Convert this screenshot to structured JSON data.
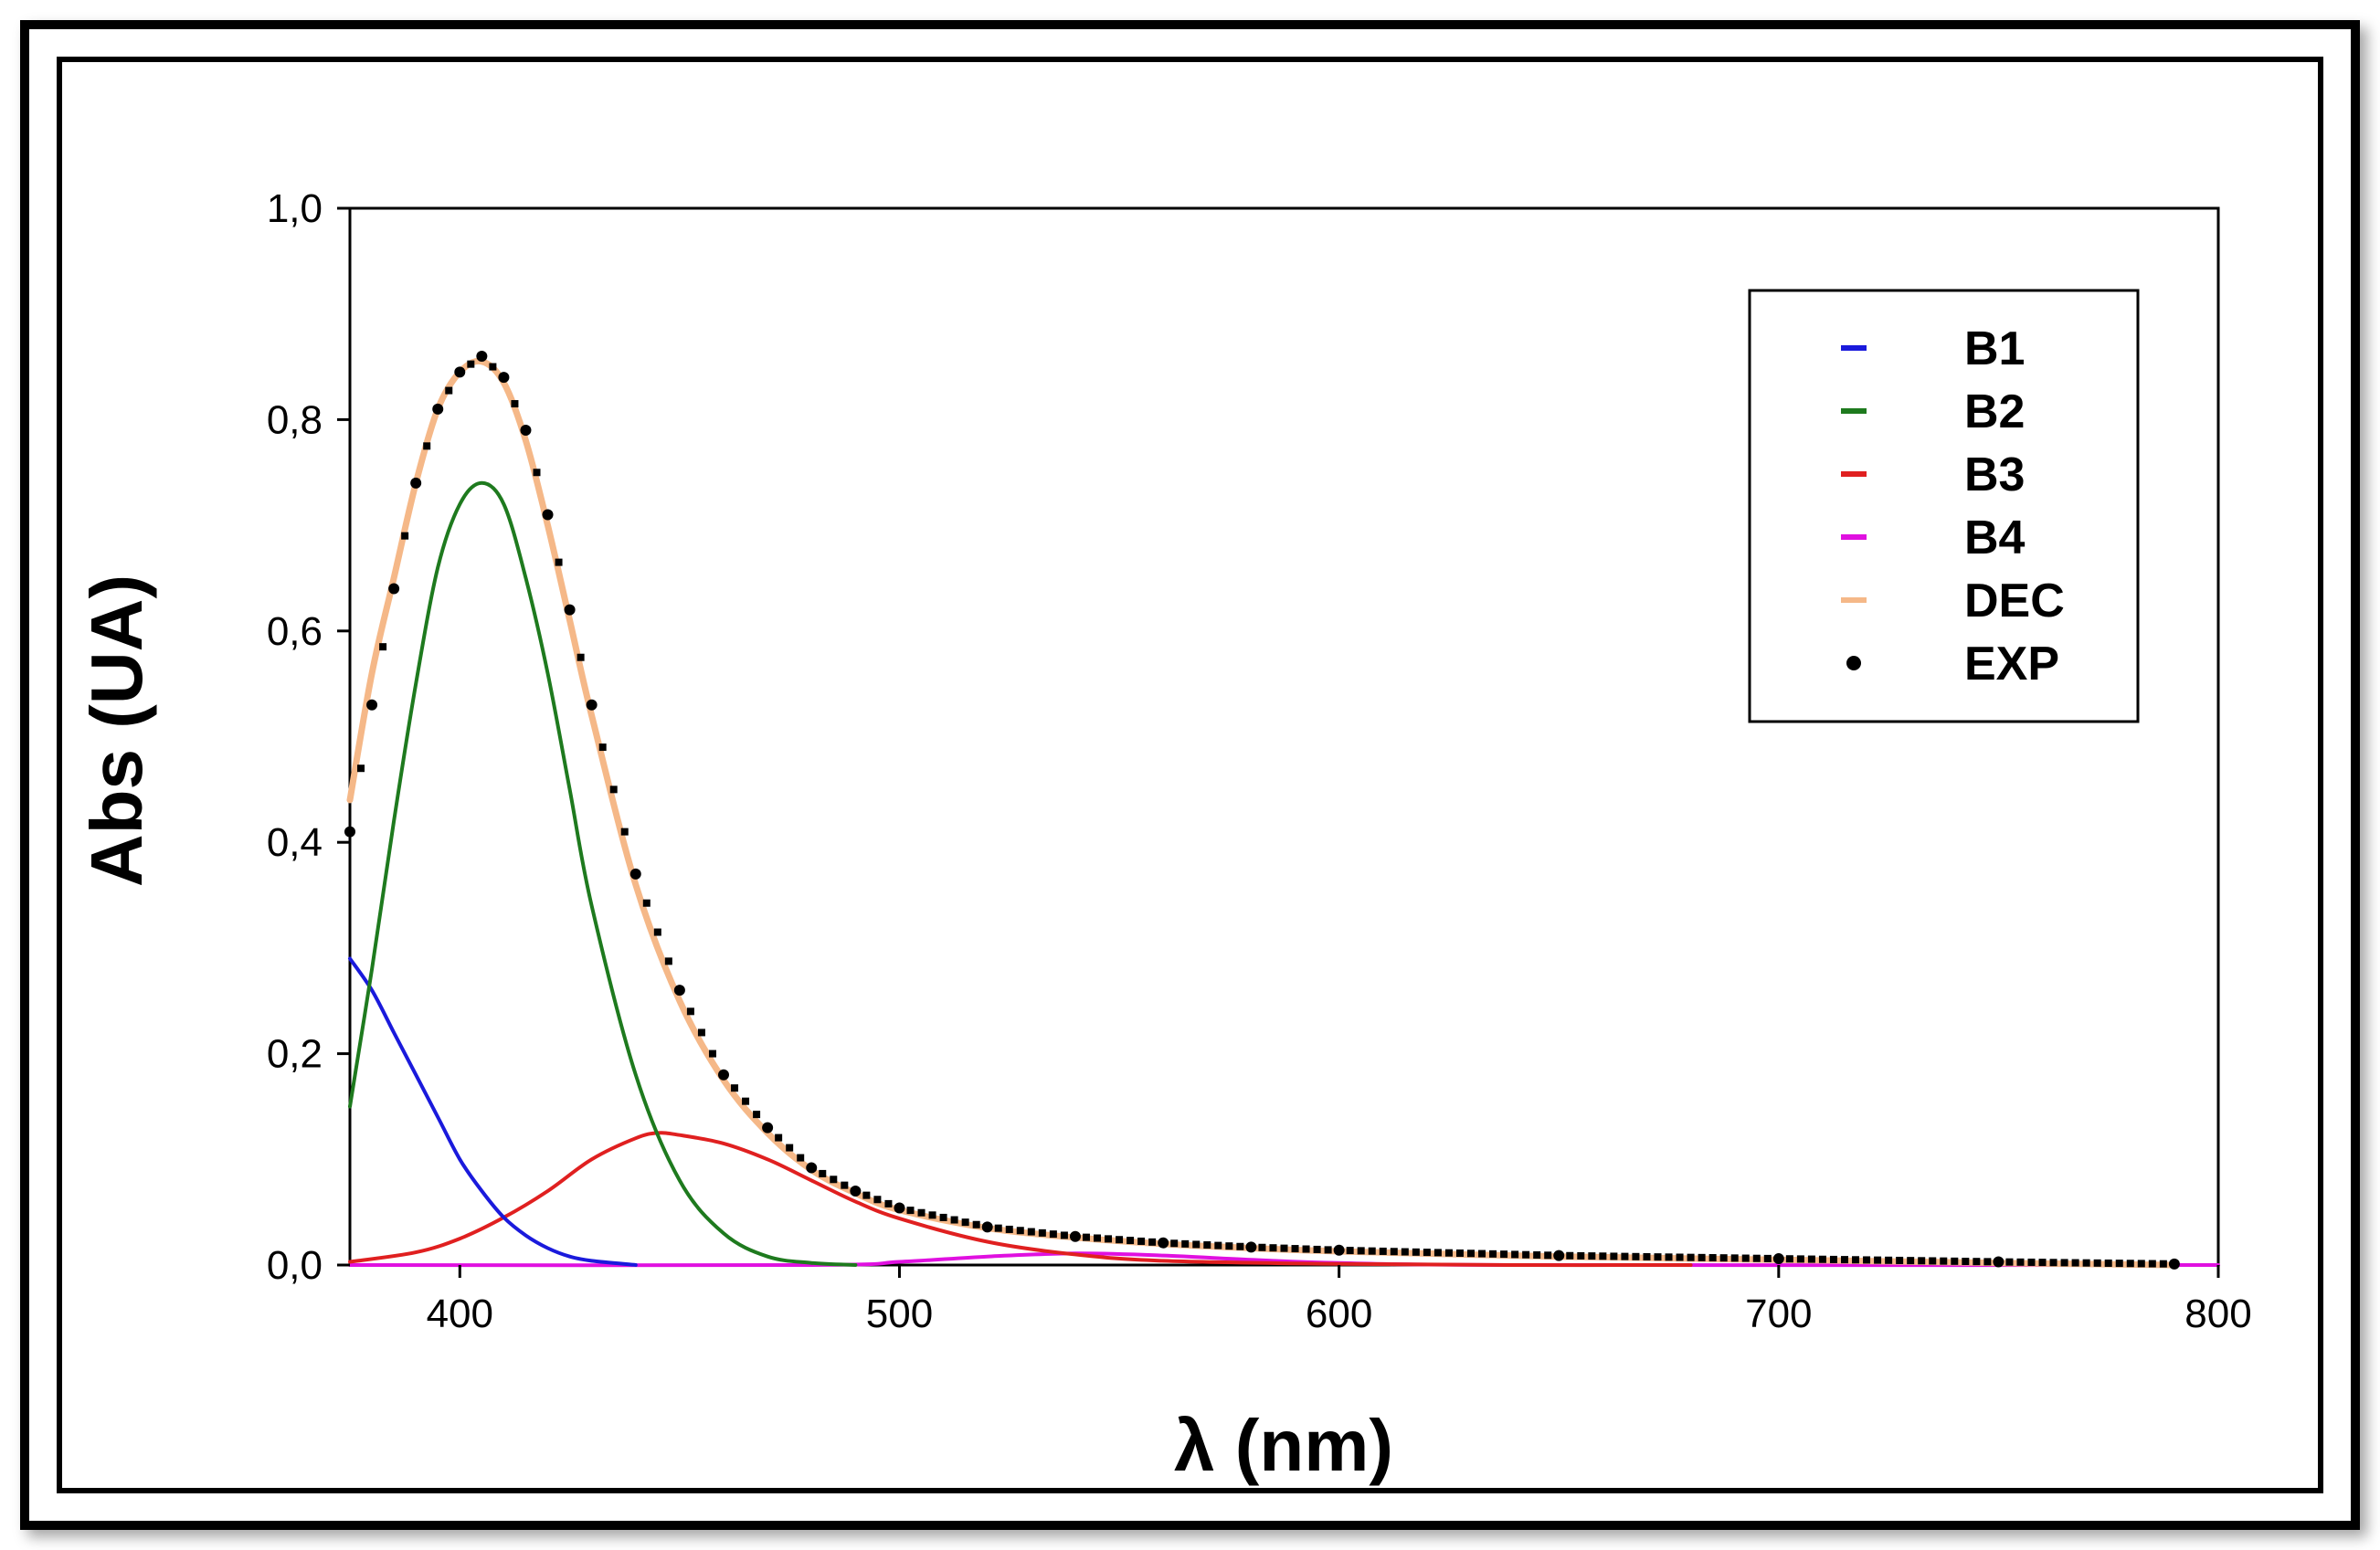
{
  "chart_data": {
    "type": "line",
    "title": "",
    "xlabel": "λ (nm)",
    "ylabel": "Abs (UA)",
    "xlim": [
      375,
      800
    ],
    "ylim": [
      0.0,
      1.0
    ],
    "x_ticks": [
      400,
      500,
      600,
      700,
      800
    ],
    "x_tick_labels": [
      "400",
      "500",
      "600",
      "700",
      "800"
    ],
    "y_ticks": [
      0.0,
      0.2,
      0.4,
      0.6,
      0.8,
      1.0
    ],
    "y_tick_labels": [
      "0,0",
      "0,2",
      "0,4",
      "0,6",
      "0,8",
      "1,0"
    ],
    "legend_position": "top-right",
    "series": [
      {
        "name": "B1",
        "color": "#1a1adc",
        "kind": "line",
        "x": [
          375,
          380,
          385,
          390,
          395,
          400,
          405,
          410,
          415,
          420,
          425,
          430,
          440
        ],
        "y": [
          0.29,
          0.26,
          0.22,
          0.18,
          0.14,
          0.1,
          0.07,
          0.045,
          0.028,
          0.016,
          0.008,
          0.004,
          0.0
        ]
      },
      {
        "name": "B2",
        "color": "#1e7a1e",
        "kind": "line",
        "x": [
          375,
          380,
          385,
          390,
          395,
          400,
          405,
          410,
          415,
          420,
          425,
          430,
          440,
          450,
          460,
          470,
          480,
          490
        ],
        "y": [
          0.15,
          0.28,
          0.42,
          0.55,
          0.66,
          0.72,
          0.74,
          0.72,
          0.65,
          0.56,
          0.45,
          0.34,
          0.18,
          0.08,
          0.03,
          0.008,
          0.002,
          0.0
        ]
      },
      {
        "name": "B3",
        "color": "#e02020",
        "kind": "line",
        "x": [
          375,
          390,
          400,
          410,
          420,
          430,
          440,
          445,
          450,
          460,
          470,
          480,
          490,
          500,
          520,
          540,
          560,
          600,
          640,
          680
        ],
        "y": [
          0.003,
          0.012,
          0.025,
          0.045,
          0.07,
          0.1,
          0.12,
          0.125,
          0.123,
          0.115,
          0.1,
          0.08,
          0.06,
          0.044,
          0.022,
          0.01,
          0.004,
          0.001,
          0.0,
          0.0
        ]
      },
      {
        "name": "B4",
        "color": "#e010e0",
        "kind": "line",
        "x": [
          375,
          480,
          500,
          520,
          540,
          560,
          580,
          600,
          640,
          800
        ],
        "y": [
          0.0,
          0.0,
          0.003,
          0.008,
          0.011,
          0.009,
          0.005,
          0.002,
          0.0,
          0.0
        ]
      },
      {
        "name": "DEC",
        "color": "#f5b888",
        "kind": "line",
        "x": [
          375,
          380,
          385,
          390,
          395,
          400,
          405,
          410,
          415,
          420,
          425,
          430,
          440,
          450,
          460,
          470,
          480,
          490,
          500,
          520,
          540,
          560,
          580,
          600,
          650,
          700,
          750,
          790
        ],
        "y": [
          0.44,
          0.56,
          0.65,
          0.74,
          0.81,
          0.845,
          0.855,
          0.835,
          0.78,
          0.7,
          0.61,
          0.52,
          0.36,
          0.25,
          0.175,
          0.125,
          0.09,
          0.068,
          0.052,
          0.035,
          0.026,
          0.02,
          0.016,
          0.013,
          0.008,
          0.005,
          0.002,
          0.0
        ]
      },
      {
        "name": "EXP",
        "color": "#000000",
        "kind": "points",
        "x": [
          375,
          380,
          385,
          390,
          395,
          400,
          405,
          410,
          415,
          420,
          425,
          430,
          440,
          450,
          460,
          470,
          480,
          490,
          500,
          520,
          540,
          560,
          580,
          600,
          650,
          700,
          750,
          790
        ],
        "y": [
          0.41,
          0.53,
          0.64,
          0.74,
          0.81,
          0.845,
          0.86,
          0.84,
          0.79,
          0.71,
          0.62,
          0.53,
          0.37,
          0.26,
          0.18,
          0.13,
          0.092,
          0.07,
          0.054,
          0.036,
          0.027,
          0.021,
          0.017,
          0.014,
          0.009,
          0.006,
          0.003,
          0.001
        ]
      }
    ]
  }
}
